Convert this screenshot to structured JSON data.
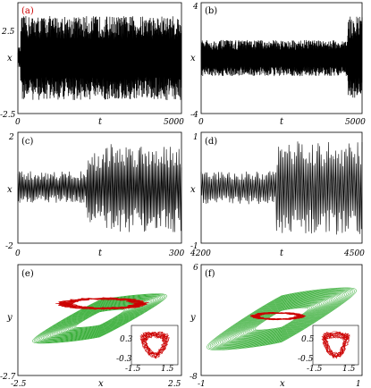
{
  "chart_data": [
    {
      "panel": "(a)",
      "type": "line",
      "xlabel": "t",
      "ylabel": "x",
      "xlim": [
        0,
        5000
      ],
      "ylim": [
        -2.5,
        2.5
      ],
      "xticks": [
        "0",
        "5000"
      ],
      "yticks": [
        "2.5",
        "-2.5"
      ],
      "series": [
        {
          "segments": [
            {
              "t": [
                0,
                80
              ],
              "low": -0.45,
              "high": 0.5
            },
            {
              "t": [
                80,
                5000
              ],
              "low": -1.9,
              "high": 1.9
            }
          ]
        }
      ]
    },
    {
      "panel": "(b)",
      "type": "line",
      "xlabel": "t",
      "ylabel": "x",
      "xlim": [
        0,
        5000
      ],
      "ylim": [
        -4,
        4
      ],
      "xticks": [
        "0",
        "5000"
      ],
      "yticks": [
        "4",
        "-4"
      ],
      "series": [
        {
          "segments": [
            {
              "t": [
                0,
                4550
              ],
              "low": -1.3,
              "high": 1.3
            },
            {
              "t": [
                4550,
                5000
              ],
              "low": -2.9,
              "high": 3.0
            }
          ]
        }
      ]
    },
    {
      "panel": "(c)",
      "type": "line",
      "xlabel": "t",
      "ylabel": "x",
      "xlim": [
        0,
        300
      ],
      "ylim": [
        -2,
        2
      ],
      "xticks": [
        "0",
        "300"
      ],
      "yticks": [
        "2",
        "-2"
      ],
      "series": [
        {
          "segments": [
            {
              "t": [
                0,
                125
              ],
              "low": -0.55,
              "high": 0.6
            },
            {
              "t": [
                125,
                160
              ],
              "low": -1.3,
              "high": 1.3
            },
            {
              "t": [
                160,
                300
              ],
              "low": -1.6,
              "high": 1.6
            }
          ]
        }
      ]
    },
    {
      "panel": "(d)",
      "type": "line",
      "xlabel": "t",
      "ylabel": "x",
      "xlim": [
        4200,
        4500
      ],
      "ylim": [
        -1,
        1
      ],
      "xticks": [
        "4200",
        "4500"
      ],
      "yticks": [
        "1",
        "-1"
      ],
      "series": [
        {
          "segments": [
            {
              "t": [
                4200,
                4340
              ],
              "low": -0.3,
              "high": 0.3
            },
            {
              "t": [
                4340,
                4500
              ],
              "low": -0.85,
              "high": 0.85
            }
          ]
        }
      ]
    },
    {
      "panel": "(e)",
      "type": "line",
      "xlabel": "x",
      "ylabel": "y",
      "xlim": [
        -2.5,
        2.5
      ],
      "ylim": [
        -2.7,
        1
      ],
      "xticks": [
        "-2.5",
        "2.5"
      ],
      "yticks": [
        "-2.7"
      ],
      "outer_attractor": {
        "color": "#2eaa2e",
        "x_range": [
          -2.1,
          2.1
        ],
        "y_range": [
          -2.2,
          0.6
        ],
        "loops": 30
      },
      "inner_attractor": {
        "color": "#cc0000",
        "center": [
          0.1,
          -0.3
        ],
        "x_half_width": 1.45,
        "y_half_height": 0.2
      },
      "inset": {
        "xlim": [
          -1.5,
          1.5
        ],
        "ylim": [
          -0.3,
          0.3
        ],
        "xticks": [
          "-1.5",
          "1.5"
        ],
        "yticks": [
          "0.3",
          "-0.3"
        ],
        "color": "#cc0000"
      }
    },
    {
      "panel": "(f)",
      "type": "line",
      "xlabel": "x",
      "ylabel": "y",
      "xlim": [
        -1,
        1
      ],
      "ylim": [
        -8,
        6
      ],
      "xticks": [
        "-1",
        "1"
      ],
      "yticks": [
        "6",
        "-8"
      ],
      "outer_attractor": {
        "color": "#2eaa2e",
        "x_range": [
          -0.95,
          0.95
        ],
        "y_range": [
          -7.5,
          5.8
        ],
        "loops": 30
      },
      "inner_attractor": {
        "color": "#cc0000",
        "center": [
          -0.05,
          -0.5
        ],
        "x_half_width": 0.35,
        "y_half_height": 0.5
      },
      "inset": {
        "xlim": [
          -1.5,
          1.5
        ],
        "ylim": [
          -0.5,
          0.5
        ],
        "xticks": [
          "-1.5",
          "1.5"
        ],
        "yticks": [
          "0.5",
          "-0.5"
        ],
        "color": "#cc0000"
      }
    }
  ]
}
